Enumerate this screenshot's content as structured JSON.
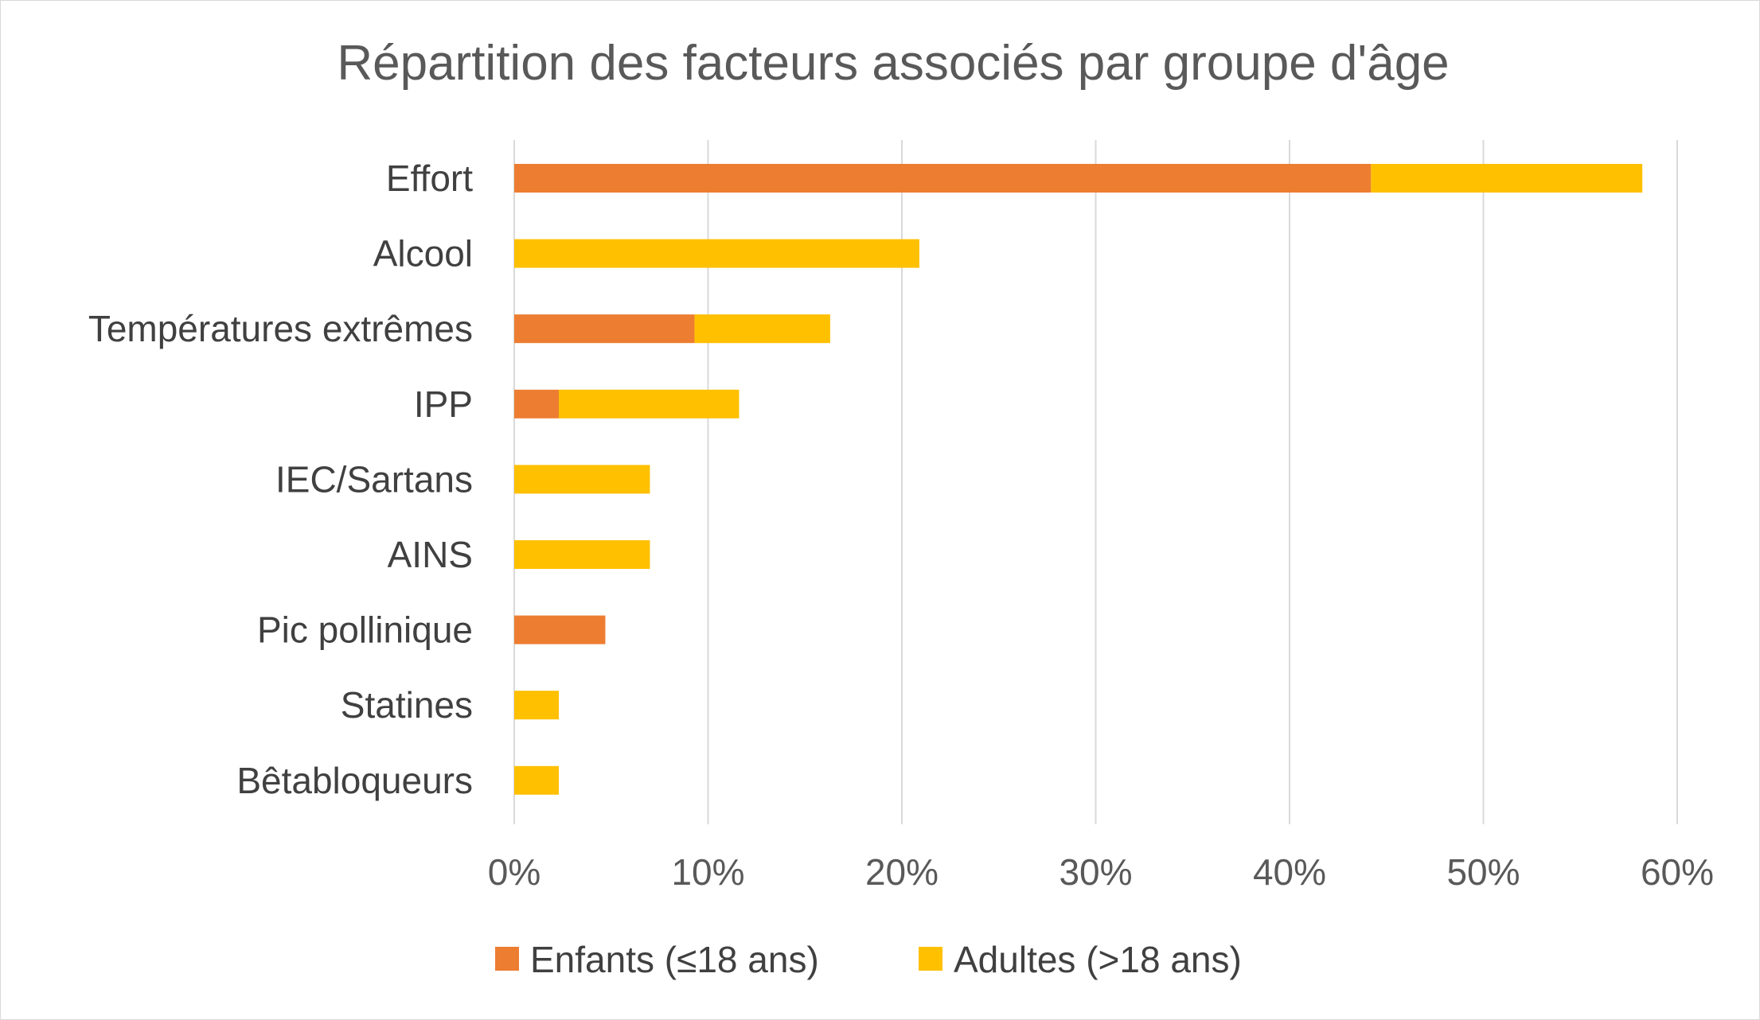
{
  "chart_data": {
    "type": "bar",
    "orientation": "horizontal",
    "stacked": true,
    "title": "Répartition des facteurs associés par groupe d'âge",
    "categories": [
      "Effort",
      "Alcool",
      "Températures extrêmes",
      "IPP",
      "IEC/Sartans",
      "AINS",
      "Pic pollinique",
      "Statines",
      "Bêtabloqueurs"
    ],
    "series": [
      {
        "name": "Enfants (≤18 ans)",
        "color": "#ED7D31",
        "values": [
          44.2,
          0,
          9.3,
          2.3,
          0,
          0,
          4.7,
          0,
          0
        ]
      },
      {
        "name": "Adultes (>18 ans)",
        "color": "#FFC000",
        "values": [
          14.0,
          20.9,
          7.0,
          9.3,
          7.0,
          7.0,
          0,
          2.3,
          2.3
        ]
      }
    ],
    "xlim": [
      0,
      60
    ],
    "xticks": [
      0,
      10,
      20,
      30,
      40,
      50,
      60
    ],
    "xtick_labels": [
      "0%",
      "10%",
      "20%",
      "30%",
      "40%",
      "50%",
      "60%"
    ],
    "grid": true,
    "legend_position": "bottom"
  }
}
